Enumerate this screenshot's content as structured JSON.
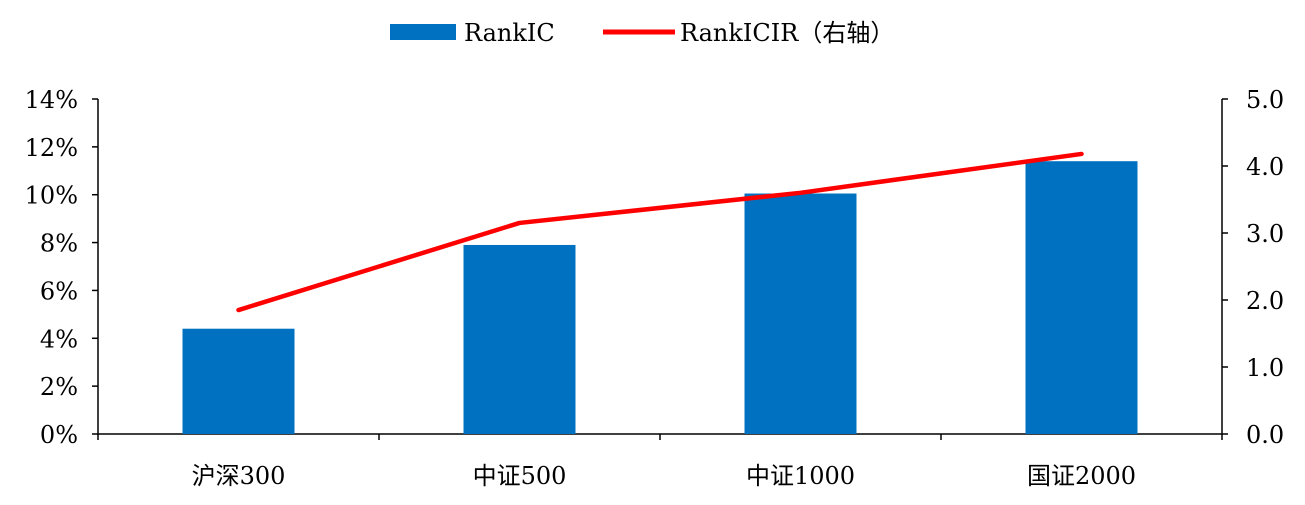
{
  "chart_data": {
    "type": "bar",
    "title": "",
    "xlabel": "",
    "ylabel": "",
    "categories": [
      "沪深300",
      "中证500",
      "中证1000",
      "国证2000"
    ],
    "series": [
      {
        "name": "RankIC",
        "type": "bar",
        "axis": "left",
        "color": "#0070C0",
        "values": [
          0.044,
          0.079,
          0.1005,
          0.114
        ]
      },
      {
        "name": "RankICIR（右轴）",
        "type": "line",
        "axis": "right",
        "color": "#FF0000",
        "values": [
          1.85,
          3.15,
          3.6,
          4.18
        ]
      }
    ],
    "ylim_left": [
      0,
      0.14
    ],
    "ylim_right": [
      0,
      5.0
    ],
    "left_ticks": [
      "0%",
      "2%",
      "4%",
      "6%",
      "8%",
      "10%",
      "12%",
      "14%"
    ],
    "right_ticks": [
      "0.0",
      "1.0",
      "2.0",
      "3.0",
      "4.0",
      "5.0"
    ],
    "grid": false,
    "legend_position": "top-center"
  }
}
